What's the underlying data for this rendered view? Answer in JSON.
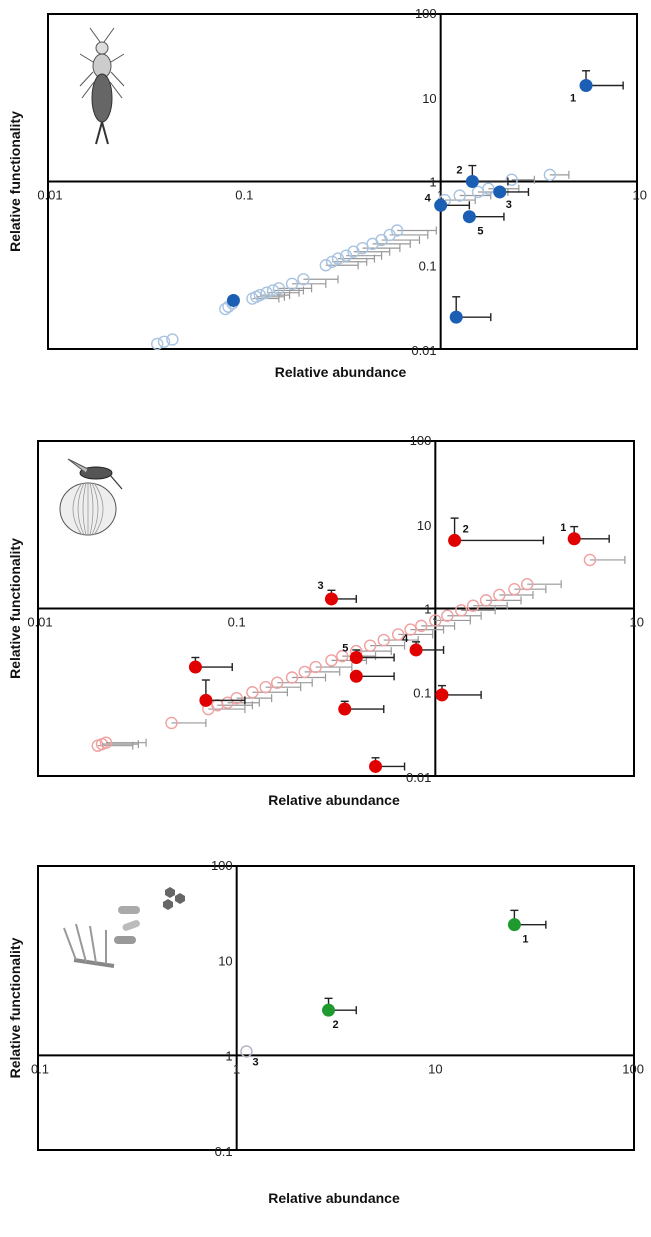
{
  "chart_data": [
    {
      "type": "scatter",
      "xlabel": "Relative abundance",
      "ylabel": "Relative functionality",
      "x_scale": "log",
      "y_scale": "log",
      "xlim": [
        0.01,
        10
      ],
      "ylim": [
        0.01,
        100
      ],
      "x_ticks": [
        "0.01",
        "0.1",
        "1",
        "10"
      ],
      "y_ticks": [
        "0.01",
        "0.1",
        "1",
        "10",
        "100"
      ],
      "reference_lines": {
        "x": 1,
        "y": 1
      },
      "icon": "earwig-illustration-icon",
      "colors": {
        "highlight": "#1a5fb4",
        "background": "#a9c4e0",
        "errorbar": "#999999",
        "highlight_errorbar": "#222222"
      },
      "series": [
        {
          "role": "highlighted",
          "points": [
            {
              "label": "1",
              "x": 5.5,
              "y": 14,
              "xerr": 8.5,
              "yerr": 21
            },
            {
              "label": "2",
              "x": 1.45,
              "y": 1.0,
              "xerr": 2.2,
              "yerr": 1.55
            },
            {
              "label": "3",
              "x": 2.0,
              "y": 0.75,
              "xerr": 2.8,
              "yerr": null
            },
            {
              "label": "4",
              "x": 1.0,
              "y": 0.52,
              "xerr": 1.4,
              "yerr": null
            },
            {
              "label": "5",
              "x": 1.4,
              "y": 0.38,
              "xerr": 2.1,
              "yerr": null
            },
            {
              "label": "",
              "x": 1.2,
              "y": 0.024,
              "xerr": 1.8,
              "yerr": 0.042
            },
            {
              "label": "",
              "x": 0.088,
              "y": 0.038,
              "xerr": null,
              "yerr": null
            }
          ]
        },
        {
          "role": "background",
          "points": [
            {
              "x": 0.036,
              "y": 0.0115
            },
            {
              "x": 0.039,
              "y": 0.0122
            },
            {
              "x": 0.043,
              "y": 0.013
            },
            {
              "x": 0.08,
              "y": 0.03
            },
            {
              "x": 0.083,
              "y": 0.032
            },
            {
              "x": 0.087,
              "y": 0.035
            },
            {
              "x": 0.11,
              "y": 0.04,
              "xerr": 0.15
            },
            {
              "x": 0.115,
              "y": 0.042,
              "xerr": 0.16
            },
            {
              "x": 0.12,
              "y": 0.044,
              "xerr": 0.17
            },
            {
              "x": 0.13,
              "y": 0.047,
              "xerr": 0.19
            },
            {
              "x": 0.14,
              "y": 0.05,
              "xerr": 0.2
            },
            {
              "x": 0.15,
              "y": 0.053,
              "xerr": 0.22
            },
            {
              "x": 0.175,
              "y": 0.06,
              "xerr": 0.26
            },
            {
              "x": 0.2,
              "y": 0.068,
              "xerr": 0.3
            },
            {
              "x": 0.26,
              "y": 0.1,
              "xerr": 0.38
            },
            {
              "x": 0.28,
              "y": 0.11,
              "xerr": 0.42
            },
            {
              "x": 0.3,
              "y": 0.12,
              "xerr": 0.46
            },
            {
              "x": 0.33,
              "y": 0.13,
              "xerr": 0.5
            },
            {
              "x": 0.36,
              "y": 0.145,
              "xerr": 0.55
            },
            {
              "x": 0.4,
              "y": 0.16,
              "xerr": 0.62
            },
            {
              "x": 0.45,
              "y": 0.18,
              "xerr": 0.7
            },
            {
              "x": 0.5,
              "y": 0.2,
              "xerr": 0.78
            },
            {
              "x": 0.55,
              "y": 0.23,
              "xerr": 0.86
            },
            {
              "x": 0.6,
              "y": 0.26,
              "xerr": 0.95
            },
            {
              "x": 1.05,
              "y": 0.6,
              "xerr": 1.5
            },
            {
              "x": 1.25,
              "y": 0.68,
              "xerr": 1.8
            },
            {
              "x": 1.55,
              "y": 0.75,
              "xerr": 2.2
            },
            {
              "x": 1.75,
              "y": 0.82,
              "xerr": 2.5
            },
            {
              "x": 2.3,
              "y": 1.05,
              "xerr": 3.0
            },
            {
              "x": 3.6,
              "y": 1.2,
              "xerr": 4.5
            }
          ]
        }
      ]
    },
    {
      "type": "scatter",
      "xlabel": "Relative abundance",
      "ylabel": "Relative functionality",
      "x_scale": "log",
      "y_scale": "log",
      "xlim": [
        0.01,
        10
      ],
      "ylim": [
        0.01,
        100
      ],
      "x_ticks": [
        "0.01",
        "0.1",
        "1",
        "10"
      ],
      "y_ticks": [
        "0.01",
        "0.1",
        "1",
        "10",
        "100"
      ],
      "reference_lines": {
        "x": 1,
        "y": 1
      },
      "icon": "wasp-on-onion-illustration-icon",
      "colors": {
        "highlight": "#e00000",
        "background": "#f0a0a0",
        "errorbar": "#999999",
        "highlight_errorbar": "#222222"
      },
      "series": [
        {
          "role": "highlighted",
          "points": [
            {
              "label": "1",
              "x": 5.0,
              "y": 6.8,
              "xerr": 7.5,
              "yerr": 9.5
            },
            {
              "label": "2",
              "x": 1.25,
              "y": 6.5,
              "xerr": 3.5,
              "yerr": 12
            },
            {
              "label": "3",
              "x": 0.3,
              "y": 1.3,
              "xerr": 0.4,
              "yerr": 1.65
            },
            {
              "label": "4",
              "x": 0.8,
              "y": 0.32,
              "xerr": 1.1,
              "yerr": 0.4
            },
            {
              "label": "5",
              "x": 0.4,
              "y": 0.26,
              "xerr": 0.62,
              "yerr": 0.32
            },
            {
              "label": "",
              "x": 0.062,
              "y": 0.2,
              "xerr": 0.095,
              "yerr": 0.26
            },
            {
              "label": "",
              "x": 0.4,
              "y": 0.155,
              "xerr": 0.62,
              "yerr": null
            },
            {
              "label": "",
              "x": 0.07,
              "y": 0.08,
              "xerr": 0.11,
              "yerr": 0.14
            },
            {
              "label": "",
              "x": 1.08,
              "y": 0.093,
              "xerr": 1.7,
              "yerr": 0.12
            },
            {
              "label": "",
              "x": 0.35,
              "y": 0.063,
              "xerr": 0.55,
              "yerr": 0.078
            },
            {
              "label": "",
              "x": 0.5,
              "y": 0.013,
              "xerr": 0.7,
              "yerr": 0.0165
            }
          ]
        },
        {
          "role": "background",
          "points": [
            {
              "x": 0.02,
              "y": 0.023,
              "xerr": 0.03
            },
            {
              "x": 0.021,
              "y": 0.024,
              "xerr": 0.032
            },
            {
              "x": 0.022,
              "y": 0.025,
              "xerr": 0.035
            },
            {
              "x": 0.047,
              "y": 0.043,
              "xerr": 0.07
            },
            {
              "x": 0.072,
              "y": 0.063,
              "xerr": 0.11
            },
            {
              "x": 0.08,
              "y": 0.07,
              "xerr": 0.12
            },
            {
              "x": 0.09,
              "y": 0.075,
              "xerr": 0.13
            },
            {
              "x": 0.1,
              "y": 0.085,
              "xerr": 0.15
            },
            {
              "x": 0.12,
              "y": 0.1,
              "xerr": 0.18
            },
            {
              "x": 0.14,
              "y": 0.115,
              "xerr": 0.21
            },
            {
              "x": 0.16,
              "y": 0.13,
              "xerr": 0.24
            },
            {
              "x": 0.19,
              "y": 0.15,
              "xerr": 0.28
            },
            {
              "x": 0.22,
              "y": 0.175,
              "xerr": 0.33
            },
            {
              "x": 0.25,
              "y": 0.2,
              "xerr": 0.38
            },
            {
              "x": 0.3,
              "y": 0.24,
              "xerr": 0.45
            },
            {
              "x": 0.34,
              "y": 0.27,
              "xerr": 0.5
            },
            {
              "x": 0.4,
              "y": 0.31,
              "xerr": 0.6
            },
            {
              "x": 0.47,
              "y": 0.36,
              "xerr": 0.7
            },
            {
              "x": 0.55,
              "y": 0.42,
              "xerr": 0.82
            },
            {
              "x": 0.65,
              "y": 0.49,
              "xerr": 0.97
            },
            {
              "x": 0.75,
              "y": 0.56,
              "xerr": 1.1
            },
            {
              "x": 0.85,
              "y": 0.62,
              "xerr": 1.25
            },
            {
              "x": 1.0,
              "y": 0.72,
              "xerr": 1.5
            },
            {
              "x": 1.15,
              "y": 0.82,
              "xerr": 1.7
            },
            {
              "x": 1.35,
              "y": 0.95,
              "xerr": 2.0
            },
            {
              "x": 1.55,
              "y": 1.08,
              "xerr": 2.3
            },
            {
              "x": 1.8,
              "y": 1.25,
              "xerr": 2.7
            },
            {
              "x": 2.1,
              "y": 1.45,
              "xerr": 3.1
            },
            {
              "x": 2.5,
              "y": 1.7,
              "xerr": 3.6
            },
            {
              "x": 2.9,
              "y": 1.95,
              "xerr": 4.3
            },
            {
              "x": 6.0,
              "y": 3.8,
              "xerr": 9.0
            }
          ]
        }
      ]
    },
    {
      "type": "scatter",
      "xlabel": "Relative abundance",
      "ylabel": "Relative functionality",
      "x_scale": "log",
      "y_scale": "log",
      "xlim": [
        0.1,
        100
      ],
      "ylim": [
        0.1,
        100
      ],
      "x_ticks": [
        "0.1",
        "1",
        "10",
        "100"
      ],
      "y_ticks": [
        "0.1",
        "1",
        "10",
        "100"
      ],
      "reference_lines": {
        "x": 1,
        "y": 1
      },
      "icon": "microbes-illustration-icon",
      "colors": {
        "highlight": "#1f9a2e",
        "background": "#b0b0c0",
        "errorbar": "#999999",
        "highlight_errorbar": "#222222"
      },
      "series": [
        {
          "role": "highlighted",
          "points": [
            {
              "label": "1",
              "x": 25,
              "y": 24,
              "xerr": 36,
              "yerr": 34
            },
            {
              "label": "2",
              "x": 2.9,
              "y": 3.0,
              "xerr": 4.0,
              "yerr": 4.0
            }
          ]
        },
        {
          "role": "background",
          "points": [
            {
              "label": "3",
              "x": 1.12,
              "y": 1.1
            }
          ]
        }
      ]
    }
  ]
}
